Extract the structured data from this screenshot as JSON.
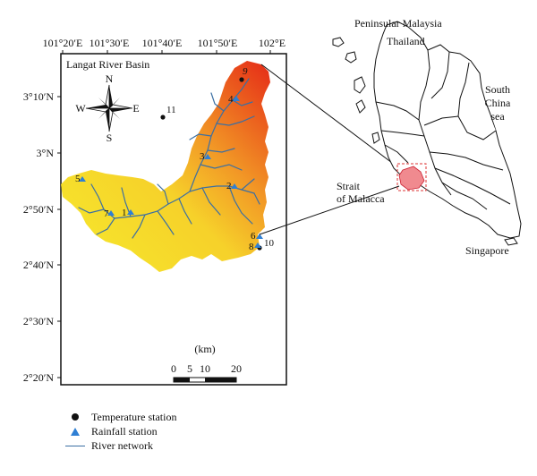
{
  "map": {
    "basin_label": "Langat River Basin",
    "lon_labels": [
      "101°20′E",
      "101°30′E",
      "101°40′E",
      "101°50′E",
      "102°E"
    ],
    "lat_labels": [
      "3°10′N",
      "3°N",
      "2°50′N",
      "2°40′N",
      "2°30′N",
      "2°20′N"
    ],
    "compass": {
      "n": "N",
      "s": "S",
      "e": "E",
      "w": "W"
    },
    "scale": {
      "title": "(km)",
      "ticks": [
        "0",
        "5",
        "10",
        "20"
      ]
    },
    "stations": [
      {
        "id": "1",
        "type": "rainfall"
      },
      {
        "id": "2",
        "type": "rainfall"
      },
      {
        "id": "3",
        "type": "rainfall"
      },
      {
        "id": "4",
        "type": "rainfall"
      },
      {
        "id": "5",
        "type": "rainfall"
      },
      {
        "id": "6",
        "type": "rainfall"
      },
      {
        "id": "7",
        "type": "rainfall"
      },
      {
        "id": "8",
        "type": "rainfall"
      },
      {
        "id": "9",
        "type": "temperature"
      },
      {
        "id": "10",
        "type": "temperature"
      },
      {
        "id": "11",
        "type": "temperature"
      }
    ],
    "colors": {
      "low": "#f6e12c",
      "mid": "#f4a327",
      "high": "#e8361c",
      "river": "#3b6fa3",
      "rainfall": "#2f7fd4",
      "highlight": "#f08a8f"
    }
  },
  "inset": {
    "labels": {
      "peninsular": "Peninsular Malaysia",
      "thailand": "Thailand",
      "south_china_1": "South",
      "south_china_2": "China",
      "south_china_3": "sea",
      "strait_1": "Strait",
      "strait_2": "of Malacca",
      "singapore": "Singapore"
    }
  },
  "legend": {
    "temperature": "Temperature station",
    "rainfall": "Rainfall station",
    "river": "River network"
  }
}
